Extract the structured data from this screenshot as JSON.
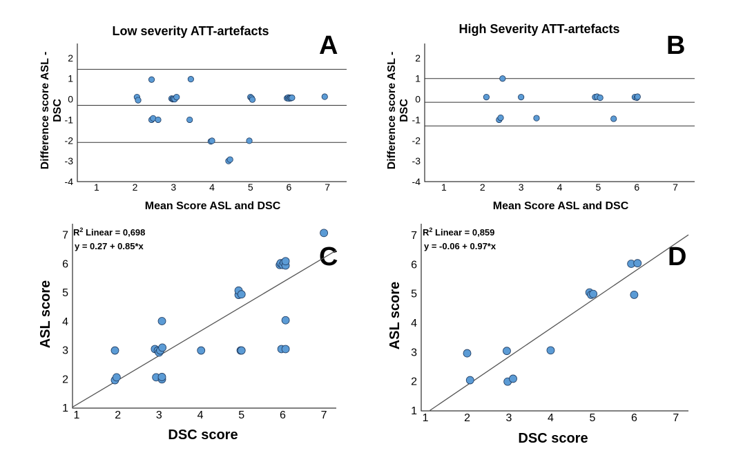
{
  "colors": {
    "point_fill": "#5b9bd5",
    "point_stroke": "#1f3a5f",
    "line": "#555555"
  },
  "chart_data": [
    {
      "panel": "A",
      "type": "scatter",
      "title": "Low severity ATT-artefacts",
      "xlabel": "Mean Score ASL and DSC",
      "ylabel": "Difference score ASL - DSC",
      "ylabel_lines": [
        "Difference score ASL -",
        "DSC"
      ],
      "xlim": [
        0.5,
        7.5
      ],
      "ylim": [
        -4,
        2.7
      ],
      "xticks": [
        "1",
        "2",
        "3",
        "4",
        "5",
        "6",
        "7"
      ],
      "yticks": [
        "2",
        "1",
        "0",
        "-1",
        "-2",
        "-3",
        "-4"
      ],
      "reference_lines": [
        1.45,
        -0.3,
        -2.1
      ],
      "points": [
        {
          "x": 2.05,
          "y": 0.1
        },
        {
          "x": 2.08,
          "y": -0.05
        },
        {
          "x": 2.43,
          "y": 0.95
        },
        {
          "x": 2.43,
          "y": -1.0
        },
        {
          "x": 2.47,
          "y": -0.93
        },
        {
          "x": 2.6,
          "y": -1.0
        },
        {
          "x": 2.95,
          "y": 0.03
        },
        {
          "x": 2.98,
          "y": 0.0
        },
        {
          "x": 3.0,
          "y": 0.02
        },
        {
          "x": 3.03,
          "y": 0.0
        },
        {
          "x": 3.08,
          "y": 0.1
        },
        {
          "x": 3.45,
          "y": 0.97
        },
        {
          "x": 3.42,
          "y": -1.0
        },
        {
          "x": 3.97,
          "y": -2.05
        },
        {
          "x": 4.0,
          "y": -2.02
        },
        {
          "x": 4.43,
          "y": -3.0
        },
        {
          "x": 4.47,
          "y": -2.93
        },
        {
          "x": 4.97,
          "y": -2.02
        },
        {
          "x": 5.0,
          "y": 0.1
        },
        {
          "x": 5.03,
          "y": 0.05
        },
        {
          "x": 5.05,
          "y": -0.02
        },
        {
          "x": 5.95,
          "y": 0.05
        },
        {
          "x": 5.98,
          "y": 0.08
        },
        {
          "x": 6.0,
          "y": 0.03
        },
        {
          "x": 6.03,
          "y": 0.07
        },
        {
          "x": 6.05,
          "y": 0.05
        },
        {
          "x": 6.08,
          "y": 0.07
        },
        {
          "x": 6.93,
          "y": 0.12
        }
      ]
    },
    {
      "panel": "B",
      "type": "scatter",
      "title": "High Severity ATT-artefacts",
      "xlabel": "Mean Score ASL and DSC",
      "ylabel": "Difference score ASL - DSC",
      "ylabel_lines": [
        "Difference score ASL -",
        "DSC"
      ],
      "xlim": [
        0.5,
        7.5
      ],
      "ylim": [
        -4,
        2.7
      ],
      "xticks": [
        "1",
        "2",
        "3",
        "4",
        "5",
        "6",
        "7"
      ],
      "yticks": [
        "2",
        "1",
        "0",
        "-1",
        "-2",
        "-3",
        "-4"
      ],
      "reference_lines": [
        1.0,
        -0.15,
        -1.3
      ],
      "points": [
        {
          "x": 2.1,
          "y": 0.1
        },
        {
          "x": 2.43,
          "y": -1.0
        },
        {
          "x": 2.47,
          "y": -0.9
        },
        {
          "x": 2.52,
          "y": 1.0
        },
        {
          "x": 3.0,
          "y": 0.1
        },
        {
          "x": 3.4,
          "y": -0.92
        },
        {
          "x": 4.92,
          "y": 0.1
        },
        {
          "x": 4.97,
          "y": 0.12
        },
        {
          "x": 5.05,
          "y": 0.07
        },
        {
          "x": 5.4,
          "y": -0.95
        },
        {
          "x": 5.95,
          "y": 0.1
        },
        {
          "x": 6.0,
          "y": 0.07
        },
        {
          "x": 6.02,
          "y": 0.12
        }
      ]
    },
    {
      "panel": "C",
      "type": "scatter",
      "xlabel": "DSC score",
      "ylabel": "ASL score",
      "xlim": [
        0.9,
        7.3
      ],
      "ylim": [
        1,
        7.4
      ],
      "xticks": [
        "1",
        "2",
        "3",
        "4",
        "5",
        "6",
        "7"
      ],
      "yticks": [
        "7",
        "6",
        "5",
        "4",
        "3",
        "2",
        "1"
      ],
      "annotation": {
        "r2_prefix": "R",
        "r2_sup": "2",
        "r2_text": " Linear = 0,698",
        "equation": "y = 0.27 + 0.85*x"
      },
      "fit": {
        "intercept": 0.27,
        "slope": 0.85
      },
      "points": [
        {
          "x": 1.93,
          "y": 3.0
        },
        {
          "x": 1.93,
          "y": 1.97
        },
        {
          "x": 1.97,
          "y": 2.07
        },
        {
          "x": 2.9,
          "y": 3.05
        },
        {
          "x": 2.93,
          "y": 2.07
        },
        {
          "x": 2.97,
          "y": 3.0
        },
        {
          "x": 3.0,
          "y": 2.93
        },
        {
          "x": 3.03,
          "y": 3.0
        },
        {
          "x": 3.07,
          "y": 2.0
        },
        {
          "x": 3.07,
          "y": 2.08
        },
        {
          "x": 3.08,
          "y": 3.1
        },
        {
          "x": 3.07,
          "y": 4.02
        },
        {
          "x": 4.02,
          "y": 3.0
        },
        {
          "x": 4.93,
          "y": 4.93
        },
        {
          "x": 4.93,
          "y": 5.08
        },
        {
          "x": 4.98,
          "y": 3.0
        },
        {
          "x": 5.0,
          "y": 4.95
        },
        {
          "x": 5.0,
          "y": 3.0
        },
        {
          "x": 5.93,
          "y": 5.97
        },
        {
          "x": 5.95,
          "y": 6.03
        },
        {
          "x": 5.97,
          "y": 3.05
        },
        {
          "x": 6.0,
          "y": 5.97
        },
        {
          "x": 6.03,
          "y": 6.05
        },
        {
          "x": 6.07,
          "y": 5.95
        },
        {
          "x": 6.07,
          "y": 6.1
        },
        {
          "x": 6.07,
          "y": 3.05
        },
        {
          "x": 6.07,
          "y": 4.05
        },
        {
          "x": 7.0,
          "y": 7.08
        }
      ]
    },
    {
      "panel": "D",
      "type": "scatter",
      "xlabel": "DSC score",
      "ylabel": "ASL score",
      "xlim": [
        0.9,
        7.3
      ],
      "ylim": [
        1,
        7.4
      ],
      "xticks": [
        "1",
        "2",
        "3",
        "4",
        "5",
        "6",
        "7"
      ],
      "yticks": [
        "7",
        "6",
        "5",
        "4",
        "3",
        "2",
        "1"
      ],
      "annotation": {
        "r2_prefix": "R",
        "r2_sup": "2",
        "r2_text": " Linear = 0,859",
        "equation": "y = -0.06 + 0.97*x"
      },
      "fit": {
        "intercept": -0.06,
        "slope": 0.97
      },
      "points": [
        {
          "x": 2.0,
          "y": 2.97
        },
        {
          "x": 2.07,
          "y": 2.05
        },
        {
          "x": 2.95,
          "y": 3.05
        },
        {
          "x": 2.97,
          "y": 2.0
        },
        {
          "x": 3.1,
          "y": 2.1
        },
        {
          "x": 4.0,
          "y": 3.07
        },
        {
          "x": 4.93,
          "y": 5.05
        },
        {
          "x": 4.97,
          "y": 4.97
        },
        {
          "x": 5.02,
          "y": 5.0
        },
        {
          "x": 5.93,
          "y": 6.03
        },
        {
          "x": 6.0,
          "y": 4.97
        },
        {
          "x": 6.08,
          "y": 6.05
        }
      ]
    }
  ]
}
